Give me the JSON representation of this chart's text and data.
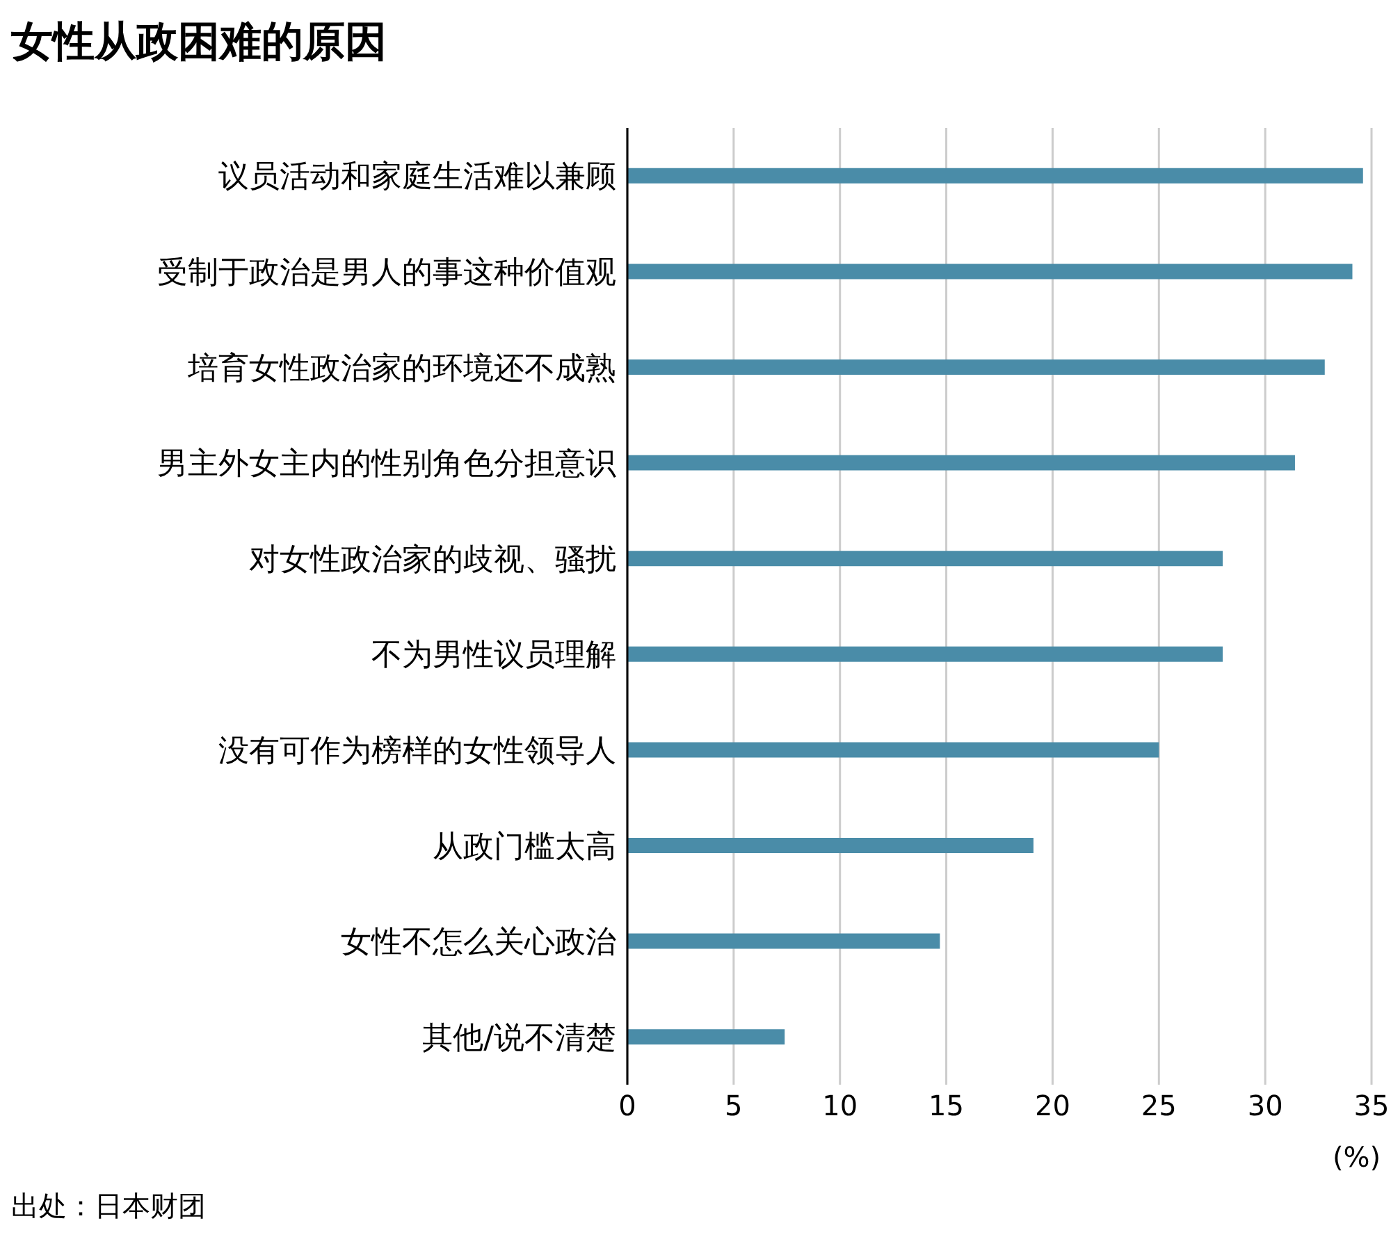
{
  "chart_data": {
    "type": "bar",
    "orientation": "horizontal",
    "title": "女性从政困难的原因",
    "xlabel": "(%)",
    "categories": [
      "议员活动和家庭生活难以兼顾",
      "受制于政治是男人的事这种价值观",
      "培育女性政治家的环境还不成熟",
      "男主外女主内的性别角色分担意识",
      "对女性政治家的歧视、骚扰",
      "不为男性议员理解",
      "没有可作为榜样的女性领导人",
      "从政门槛太高",
      "女性不怎么关心政治",
      "其他/说不清楚"
    ],
    "values": [
      34.6,
      34.1,
      32.8,
      31.4,
      28.0,
      28.0,
      25.0,
      19.1,
      14.7,
      7.4
    ],
    "color": "#4a8ca8",
    "xlim": [
      0,
      35
    ],
    "xticks": [
      0,
      5,
      10,
      15,
      20,
      25,
      30,
      35
    ],
    "grid": "x",
    "annotations": [
      "出处：日本财团"
    ]
  }
}
